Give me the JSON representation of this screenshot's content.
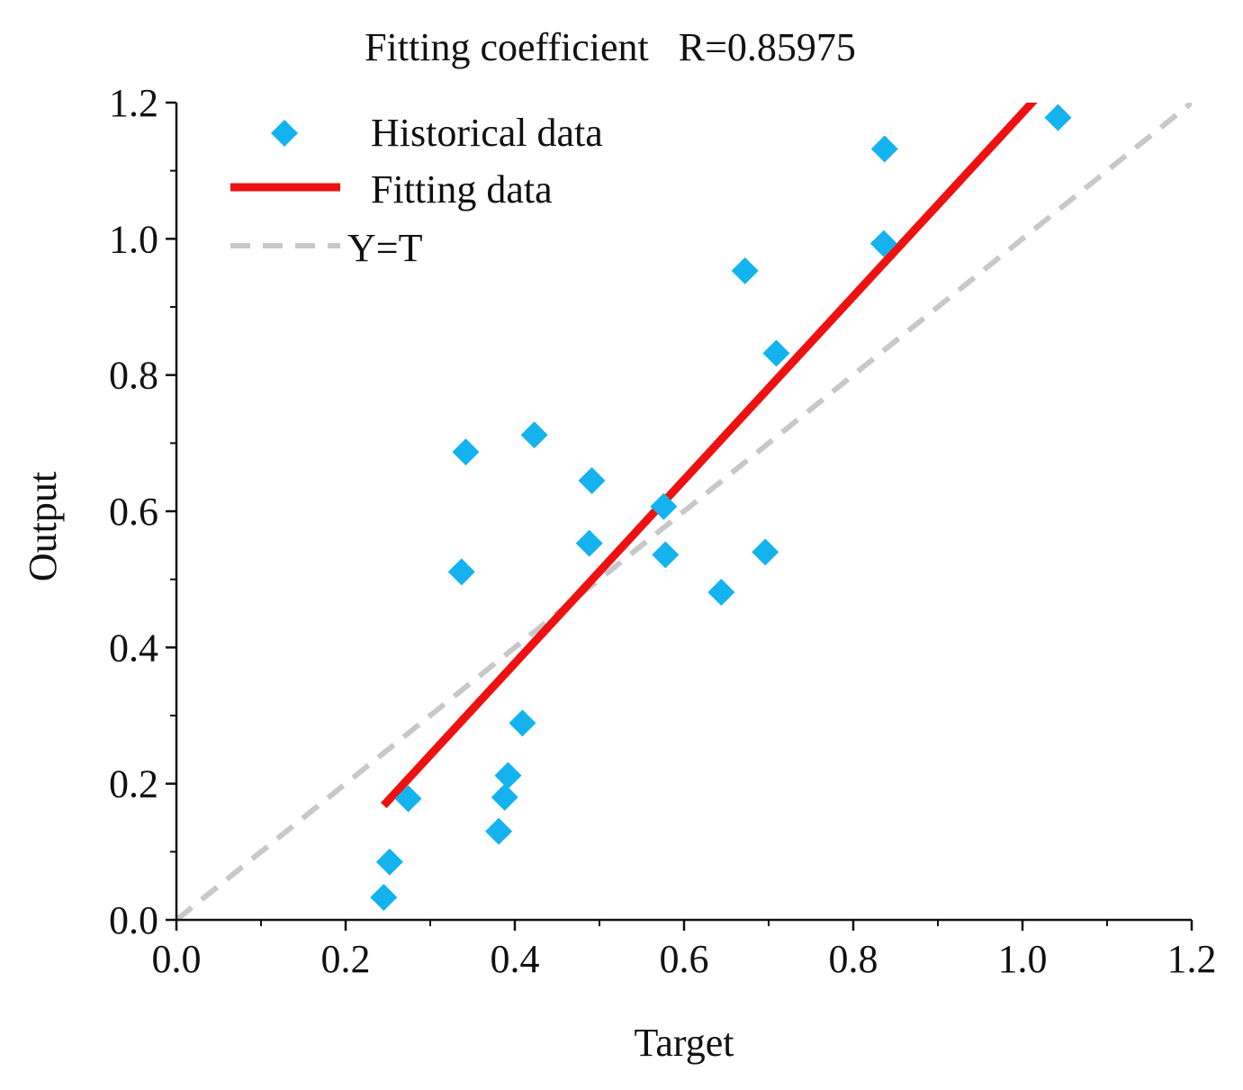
{
  "chart_data": {
    "type": "scatter",
    "title": "Fitting coefficient   R=0.85975",
    "xlabel": "Target",
    "ylabel": "Output",
    "xlim": [
      0.0,
      1.2
    ],
    "ylim": [
      0.0,
      1.2
    ],
    "x_ticks": [
      "0.0",
      "0.2",
      "0.4",
      "0.6",
      "0.8",
      "1.0",
      "1.2"
    ],
    "y_ticks": [
      "0.0",
      "0.2",
      "0.4",
      "0.6",
      "0.8",
      "1.0",
      "1.2"
    ],
    "grid": false,
    "legend_position": "top-left",
    "series": [
      {
        "name": "Historical data",
        "kind": "scatter",
        "marker": "diamond",
        "color": "#14B3F0",
        "x": [
          0.245,
          0.252,
          0.274,
          0.337,
          0.342,
          0.381,
          0.388,
          0.392,
          0.409,
          0.423,
          0.488,
          0.491,
          0.576,
          0.578,
          0.644,
          0.672,
          0.696,
          0.709,
          0.836,
          0.837,
          1.042
        ],
        "y": [
          0.033,
          0.085,
          0.178,
          0.511,
          0.687,
          0.13,
          0.18,
          0.212,
          0.289,
          0.712,
          0.553,
          0.645,
          0.607,
          0.536,
          0.481,
          0.953,
          0.54,
          0.832,
          0.993,
          1.132,
          1.178
        ]
      },
      {
        "name": "Fitting data",
        "kind": "line",
        "style": "solid",
        "color": "#EE1111",
        "x": [
          0.245,
          1.015
        ],
        "y": [
          0.168,
          1.205
        ]
      },
      {
        "name": "Y=T",
        "kind": "line",
        "style": "dashed",
        "color": "#C8C8C8",
        "x": [
          0.0,
          1.2
        ],
        "y": [
          0.0,
          1.2
        ]
      }
    ]
  }
}
